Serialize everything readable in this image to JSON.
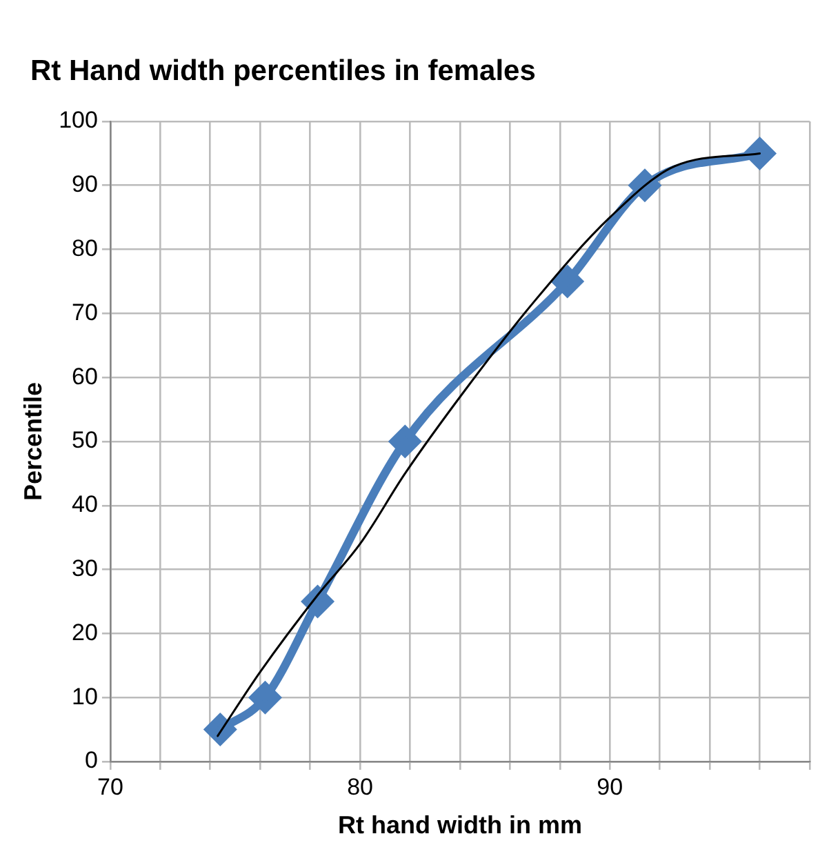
{
  "chart_data": {
    "type": "line",
    "title": "Rt Hand width percentiles in females",
    "xlabel": "Rt hand width in mm",
    "ylabel": "Percentile",
    "series": [
      {
        "color": "#4a7ebb",
        "x": [
          74.4,
          76.2,
          78.3,
          81.8,
          88.3,
          91.4,
          96
        ],
        "values": [
          5,
          10,
          25,
          50,
          75,
          90,
          95
        ],
        "marker": "diamond"
      },
      {
        "type": "line",
        "color": "#000000",
        "marker": "none",
        "x": [
          74.3,
          76,
          78.3,
          80,
          81.8,
          84.2,
          87,
          90,
          92.6,
          96
        ],
        "values": [
          4,
          14,
          26,
          34,
          45,
          58,
          72,
          85,
          93,
          95
        ]
      }
    ],
    "xlim": [
      70,
      98
    ],
    "xticks": [
      70,
      {
        "value": 72,
        "label": null
      },
      {
        "value": 74,
        "label": null
      },
      {
        "value": 76,
        "label": null
      },
      {
        "value": 78,
        "label": null
      },
      80,
      {
        "value": 82,
        "label": null
      },
      {
        "value": 84,
        "label": null
      },
      {
        "value": 86,
        "label": null
      },
      {
        "value": 88,
        "label": null
      },
      90,
      {
        "value": 92,
        "label": null
      },
      {
        "value": 94,
        "label": null
      },
      {
        "value": 96,
        "label": null
      },
      {
        "value": 98,
        "label": null
      }
    ],
    "ylim": [
      0,
      100
    ],
    "yticks": [
      0,
      10,
      20,
      30,
      40,
      50,
      60,
      70,
      80,
      90,
      100
    ],
    "grid": true,
    "legend": false
  }
}
